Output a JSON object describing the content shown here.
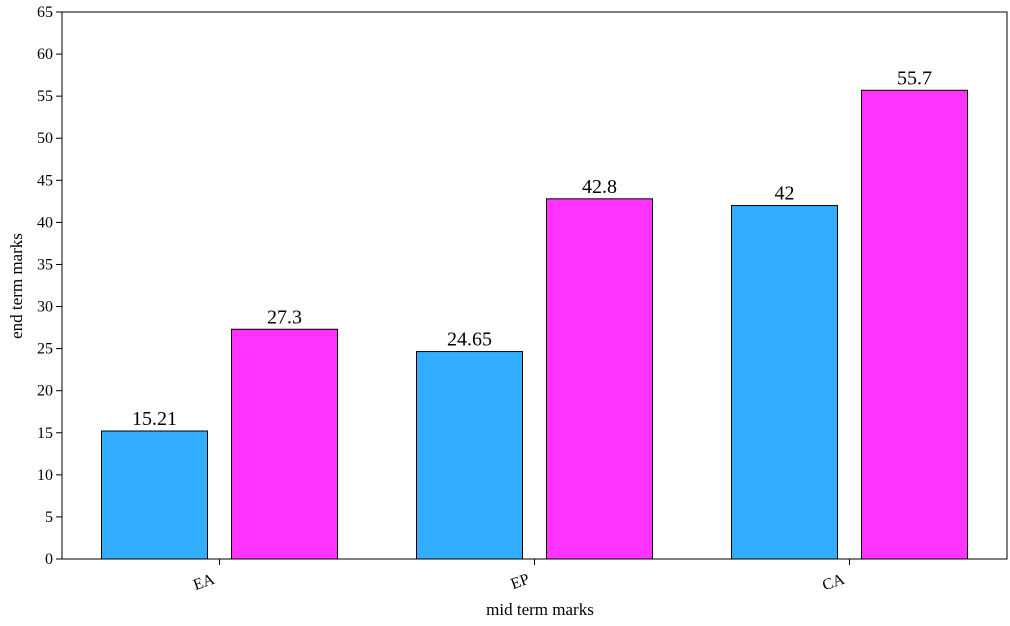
{
  "chart_data": {
    "type": "bar",
    "title": "",
    "xlabel": "mid term marks",
    "ylabel": "end term marks",
    "categories": [
      "EA",
      "EP",
      "CA"
    ],
    "series": [
      {
        "values": [
          15.21,
          24.65,
          42
        ],
        "color": "#33adff"
      },
      {
        "values": [
          27.3,
          42.8,
          55.7
        ],
        "color": "#ff33ff"
      }
    ],
    "data_labels": [
      [
        "15.21",
        "24.65",
        "42"
      ],
      [
        "27.3",
        "42.8",
        "55.7"
      ]
    ],
    "ylim": [
      0,
      65
    ],
    "yticks": [
      0,
      5,
      10,
      15,
      20,
      25,
      30,
      35,
      40,
      45,
      50,
      55,
      60,
      65
    ],
    "grid": false,
    "legend": "none"
  }
}
